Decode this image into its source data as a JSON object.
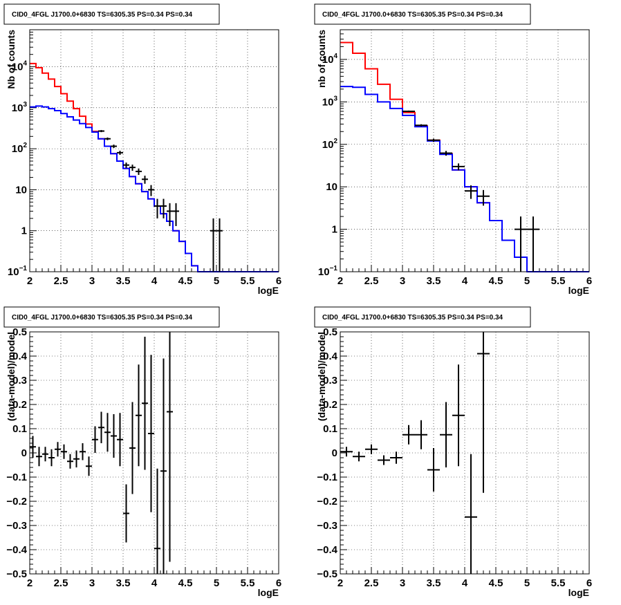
{
  "chart_data": [
    {
      "type": "histogram",
      "title": "CID0_4FGL J1700.0+6830 TS=6305.35 PS=0.34 PS=0.34",
      "xlabel": "logE",
      "ylabel": "Nb of counts",
      "xlim": [
        2,
        6
      ],
      "ylim": [
        0.1,
        80000
      ],
      "yscale": "log",
      "grid": true,
      "x_ticks": [
        "2",
        "2.5",
        "3",
        "3.5",
        "4",
        "4.5",
        "5",
        "5.5",
        "6"
      ],
      "y_ticks": [
        "10^4",
        "10^3",
        "10^2",
        "10",
        "1",
        "10^-1"
      ],
      "bin_edges": [
        2.0,
        2.1,
        2.2,
        2.3,
        2.4,
        2.5,
        2.6,
        2.7,
        2.8,
        2.9,
        3.0,
        3.1,
        3.2,
        3.3,
        3.4,
        3.5,
        3.6,
        3.7,
        3.8,
        3.9,
        4.0,
        4.1,
        4.2,
        4.3,
        4.4,
        4.5,
        4.6,
        4.7,
        4.8,
        4.9,
        5.0,
        5.1,
        5.2,
        5.3,
        5.4,
        5.5,
        5.6,
        5.7,
        5.8,
        5.9,
        6.0
      ],
      "series": [
        {
          "color": "#ff0000",
          "style": "step",
          "values": [
            12000,
            9500,
            7000,
            5000,
            3300,
            2200,
            1450,
            950,
            620,
            400,
            265,
            175,
            115,
            76,
            50,
            33,
            21,
            14,
            9,
            6,
            4,
            2.6,
            1.7,
            1.0,
            0.55,
            0.28,
            0.14,
            0.1,
            0.1,
            0.1,
            0.1,
            0.1,
            0.1,
            0.1,
            0.1,
            0.1,
            0.1,
            0.1,
            0.1,
            0.1
          ]
        },
        {
          "color": "#0000ff",
          "style": "step",
          "values": [
            1050,
            1100,
            1050,
            950,
            850,
            720,
            600,
            500,
            410,
            330,
            255,
            175,
            115,
            76,
            50,
            33,
            21,
            14,
            9,
            6,
            4,
            2.6,
            1.7,
            1.0,
            0.55,
            0.28,
            0.14,
            0.1,
            0.1,
            0.1,
            0.1,
            0.1,
            0.1,
            0.1,
            0.1,
            0.1,
            0.1,
            0.1,
            0.1,
            0.1
          ]
        },
        {
          "color": "#000000",
          "style": "errorbar",
          "points": [
            {
              "x": 3.15,
              "y": 270,
              "err": 16
            },
            {
              "x": 3.25,
              "y": 175,
              "err": 13
            },
            {
              "x": 3.35,
              "y": 115,
              "err": 11
            },
            {
              "x": 3.45,
              "y": 80,
              "err": 9
            },
            {
              "x": 3.55,
              "y": 40,
              "err": 6
            },
            {
              "x": 3.65,
              "y": 35,
              "err": 6
            },
            {
              "x": 3.75,
              "y": 28,
              "err": 5
            },
            {
              "x": 3.85,
              "y": 18,
              "err": 4
            },
            {
              "x": 3.95,
              "y": 10,
              "err": 3
            },
            {
              "x": 4.05,
              "y": 4,
              "err": 2
            },
            {
              "x": 4.15,
              "y": 4,
              "err": 2
            },
            {
              "x": 4.25,
              "y": 3,
              "err": 1.7
            },
            {
              "x": 4.35,
              "y": 3,
              "err": 1.7
            },
            {
              "x": 4.95,
              "y": 1,
              "err": 1
            },
            {
              "x": 5.05,
              "y": 1,
              "err": 1
            }
          ]
        }
      ]
    },
    {
      "type": "histogram",
      "title": "CID0_4FGL J1700.0+6830 TS=6305.35 PS=0.34 PS=0.34",
      "xlabel": "logE",
      "ylabel": "nb of counts",
      "xlim": [
        2,
        6
      ],
      "ylim": [
        0.1,
        50000
      ],
      "yscale": "log",
      "grid": true,
      "x_ticks": [
        "2",
        "2.5",
        "3",
        "3.5",
        "4",
        "4.5",
        "5",
        "5.5",
        "6"
      ],
      "y_ticks": [
        "10^4",
        "10^3",
        "10^2",
        "10",
        "1",
        "10^-1"
      ],
      "bin_edges": [
        2.0,
        2.2,
        2.4,
        2.6,
        2.8,
        3.0,
        3.2,
        3.4,
        3.6,
        3.8,
        4.0,
        4.2,
        4.4,
        4.6,
        4.8,
        5.0,
        5.2,
        5.4,
        5.6,
        5.8,
        6.0
      ],
      "series": [
        {
          "color": "#ff0000",
          "style": "step",
          "values": [
            25000,
            14000,
            6000,
            2600,
            1150,
            560,
            270,
            125,
            60,
            25,
            10,
            4.2,
            1.6,
            0.55,
            0.22,
            0.1,
            0.1,
            0.1,
            0.1,
            0.1
          ]
        },
        {
          "color": "#0000ff",
          "style": "step",
          "values": [
            2300,
            2200,
            1500,
            1000,
            700,
            480,
            260,
            120,
            58,
            25,
            10,
            4.2,
            1.6,
            0.55,
            0.22,
            0.1,
            0.1,
            0.1,
            0.1,
            0.1
          ]
        },
        {
          "color": "#000000",
          "style": "errorbar",
          "points": [
            {
              "x": 3.1,
              "y": 600,
              "err": 25
            },
            {
              "x": 3.3,
              "y": 280,
              "err": 17
            },
            {
              "x": 3.5,
              "y": 125,
              "err": 11
            },
            {
              "x": 3.7,
              "y": 62,
              "err": 8
            },
            {
              "x": 3.9,
              "y": 30,
              "err": 5.5
            },
            {
              "x": 4.1,
              "y": 8,
              "err": 2.8
            },
            {
              "x": 4.3,
              "y": 6,
              "err": 2.4
            },
            {
              "x": 4.9,
              "y": 1,
              "err": 1
            },
            {
              "x": 5.1,
              "y": 1,
              "err": 1
            }
          ]
        }
      ]
    },
    {
      "type": "scatter",
      "title": "CID0_4FGL J1700.0+6830 TS=6305.35 PS=0.34 PS=0.34",
      "xlabel": "logE",
      "ylabel": "(data-model)/model",
      "xlim": [
        2,
        6
      ],
      "ylim": [
        -0.5,
        0.5
      ],
      "grid": true,
      "x_ticks": [
        "2",
        "2.5",
        "3",
        "3.5",
        "4",
        "4.5",
        "5",
        "5.5",
        "6"
      ],
      "y_ticks": [
        "0.5",
        "0.4",
        "0.3",
        "0.2",
        "0.1",
        "0",
        "-0.1",
        "-0.2",
        "-0.3",
        "-0.4",
        "-0.5"
      ],
      "xerr": 0.05,
      "points": [
        {
          "x": 2.05,
          "y": 0.025,
          "err": 0.045
        },
        {
          "x": 2.15,
          "y": -0.015,
          "err": 0.04
        },
        {
          "x": 2.25,
          "y": -0.005,
          "err": 0.03
        },
        {
          "x": 2.35,
          "y": -0.02,
          "err": 0.035
        },
        {
          "x": 2.45,
          "y": 0.015,
          "err": 0.03
        },
        {
          "x": 2.55,
          "y": 0.005,
          "err": 0.03
        },
        {
          "x": 2.65,
          "y": -0.035,
          "err": 0.03
        },
        {
          "x": 2.75,
          "y": -0.025,
          "err": 0.035
        },
        {
          "x": 2.85,
          "y": 0.005,
          "err": 0.035
        },
        {
          "x": 2.95,
          "y": -0.055,
          "err": 0.04
        },
        {
          "x": 3.05,
          "y": 0.055,
          "err": 0.055
        },
        {
          "x": 3.15,
          "y": 0.105,
          "err": 0.065
        },
        {
          "x": 3.25,
          "y": 0.085,
          "err": 0.08
        },
        {
          "x": 3.35,
          "y": 0.07,
          "err": 0.09
        },
        {
          "x": 3.45,
          "y": 0.055,
          "err": 0.11
        },
        {
          "x": 3.55,
          "y": -0.25,
          "err": 0.12
        },
        {
          "x": 3.65,
          "y": 0.02,
          "err": 0.19
        },
        {
          "x": 3.75,
          "y": 0.155,
          "err": 0.21
        },
        {
          "x": 3.85,
          "y": 0.205,
          "err": 0.275
        },
        {
          "x": 3.95,
          "y": 0.08,
          "err": 0.325
        },
        {
          "x": 4.05,
          "y": -0.395,
          "err": 0.33
        },
        {
          "x": 4.15,
          "y": -0.075,
          "err": 0.465
        },
        {
          "x": 4.25,
          "y": 0.17,
          "err": 0.62
        }
      ]
    },
    {
      "type": "scatter",
      "title": "CID0_4FGL J1700.0+6830 TS=6305.35 PS=0.34 PS=0.34",
      "xlabel": "logE",
      "ylabel": "(data-model)/model",
      "xlim": [
        2,
        6
      ],
      "ylim": [
        -0.5,
        0.5
      ],
      "grid": true,
      "x_ticks": [
        "2",
        "2.5",
        "3",
        "3.5",
        "4",
        "4.5",
        "5",
        "5.5",
        "6"
      ],
      "y_ticks": [
        "0.5",
        "0.4",
        "0.3",
        "0.2",
        "0.1",
        "0",
        "-0.1",
        "-0.2",
        "-0.3",
        "-0.4",
        "-0.5"
      ],
      "xerr": 0.1,
      "points": [
        {
          "x": 2.1,
          "y": 0.005,
          "err": 0.02
        },
        {
          "x": 2.3,
          "y": -0.015,
          "err": 0.02
        },
        {
          "x": 2.5,
          "y": 0.015,
          "err": 0.02
        },
        {
          "x": 2.7,
          "y": -0.03,
          "err": 0.02
        },
        {
          "x": 2.9,
          "y": -0.02,
          "err": 0.025
        },
        {
          "x": 3.1,
          "y": 0.075,
          "err": 0.04
        },
        {
          "x": 3.3,
          "y": 0.075,
          "err": 0.06
        },
        {
          "x": 3.5,
          "y": -0.07,
          "err": 0.09
        },
        {
          "x": 3.7,
          "y": 0.075,
          "err": 0.135
        },
        {
          "x": 3.9,
          "y": 0.155,
          "err": 0.21
        },
        {
          "x": 4.1,
          "y": -0.265,
          "err": 0.26
        },
        {
          "x": 4.3,
          "y": 0.41,
          "err": 0.575
        }
      ]
    }
  ]
}
